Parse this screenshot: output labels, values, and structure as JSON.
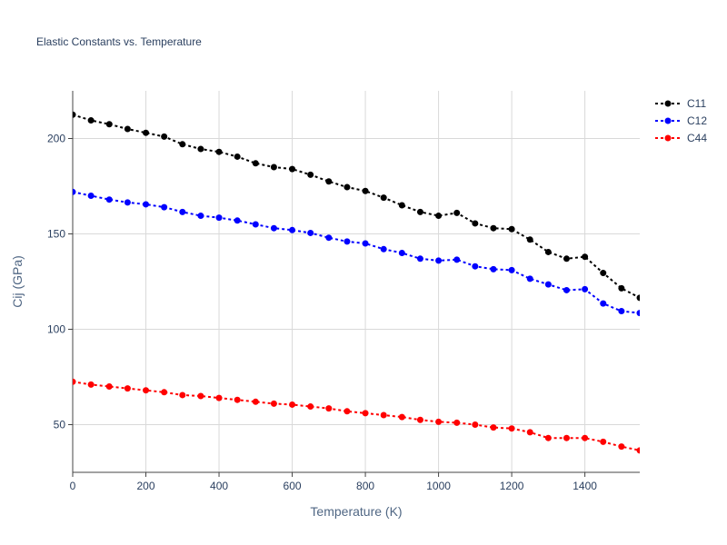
{
  "chart_data": {
    "type": "line",
    "title": "Elastic Constants vs. Temperature",
    "xlabel": "Temperature (K)",
    "ylabel": "Cij (GPa)",
    "xlim": [
      0,
      1550
    ],
    "ylim": [
      25,
      225
    ],
    "xticks": [
      0,
      200,
      400,
      600,
      800,
      1000,
      1200,
      1400
    ],
    "yticks": [
      50,
      100,
      150,
      200
    ],
    "grid": true,
    "legend_position": "top-right",
    "x": [
      0,
      50,
      100,
      150,
      200,
      250,
      300,
      350,
      400,
      450,
      500,
      550,
      600,
      650,
      700,
      750,
      800,
      850,
      900,
      950,
      1000,
      1050,
      1100,
      1150,
      1200,
      1250,
      1300,
      1350,
      1400,
      1450,
      1500,
      1550
    ],
    "series": [
      {
        "name": "C11",
        "color": "#000000",
        "values": [
          212.5,
          209.5,
          207.5,
          205,
          203,
          201,
          197,
          194.5,
          193,
          190.5,
          187,
          185,
          184,
          181,
          177.5,
          174.5,
          172.5,
          169,
          165,
          161.5,
          159.5,
          161,
          155.5,
          153,
          152.5,
          147,
          140.5,
          137,
          138,
          129.5,
          121.5,
          116.5
        ]
      },
      {
        "name": "C12",
        "color": "#0000ff",
        "values": [
          172,
          170,
          168,
          166.5,
          165.5,
          164,
          161.5,
          159.5,
          158.5,
          157,
          155,
          153,
          152,
          150.5,
          148,
          146,
          145,
          142,
          140,
          137,
          136,
          136.5,
          133,
          131.5,
          131,
          126.5,
          123.5,
          120.5,
          121,
          113.5,
          109.5,
          108.5
        ]
      },
      {
        "name": "C44",
        "color": "#ff0000",
        "values": [
          72.5,
          71,
          70,
          69,
          68,
          67,
          65.5,
          65,
          64,
          63,
          62,
          61,
          60.5,
          59.5,
          58.5,
          57,
          56,
          55,
          54,
          52.5,
          51.5,
          51,
          50,
          48.5,
          48,
          46,
          43,
          43,
          43,
          41,
          38.5,
          36.5
        ]
      }
    ]
  }
}
